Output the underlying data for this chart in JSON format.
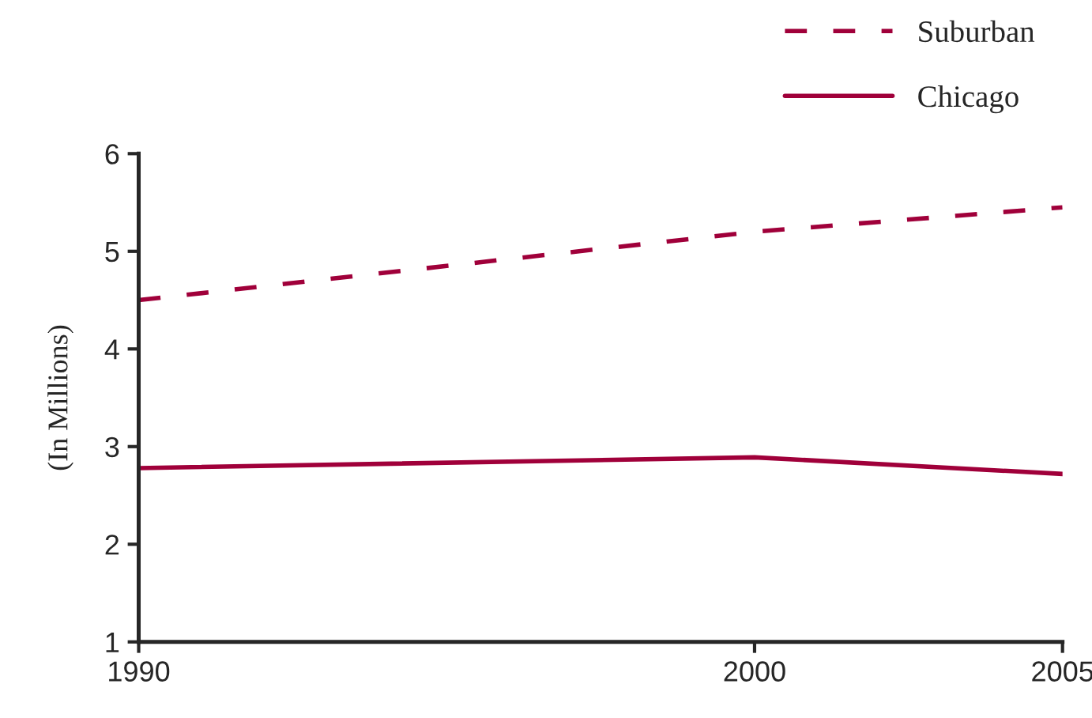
{
  "chart_data": {
    "type": "line",
    "ylabel": "(In Millions)",
    "x": [
      1990,
      2000,
      2005
    ],
    "xlim": [
      1990,
      2005
    ],
    "xticks": [
      1990,
      2000,
      2005
    ],
    "ylim": [
      1,
      6
    ],
    "yticks": [
      1,
      2,
      3,
      4,
      5,
      6
    ],
    "grid": false,
    "legend": "top right",
    "series": [
      {
        "name": "Suburban",
        "color": "#a0003a",
        "line_style": "dashed",
        "values": [
          4.5,
          5.2,
          5.45
        ]
      },
      {
        "name": "Chicago",
        "color": "#a0003a",
        "line_style": "solid",
        "values": [
          2.78,
          2.89,
          2.72
        ]
      }
    ]
  }
}
